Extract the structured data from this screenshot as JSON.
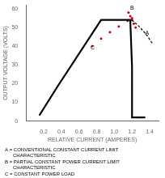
{
  "chart_data": {
    "type": "line",
    "xlabel": "RELATIVE CURRENT (AMPERES)",
    "ylabel": "OUTPUT VOLTAGE (VOLTS)",
    "xlim": [
      0.0,
      1.5
    ],
    "ylim": [
      0,
      62
    ],
    "xticks": [
      0.2,
      0.4,
      0.6,
      0.8,
      {
        "value": 1.0,
        "label": "1.0"
      },
      1.2,
      1.4
    ],
    "yticks": [
      0,
      10,
      20,
      30,
      40,
      50,
      60
    ],
    "grid": false,
    "series": [
      {
        "x": [
          0.15,
          0.35,
          0.85,
          1.18,
          1.2,
          1.2,
          1.35
        ],
        "values": [
          3.0,
          18.0,
          54.0,
          54.0,
          29.0,
          2.0,
          2.0
        ],
        "color": "#000000",
        "line_style": "solid"
      },
      {
        "x": [
          1.2,
          1.27,
          1.33,
          1.38,
          1.43
        ],
        "values": [
          54.0,
          51.0,
          48.0,
          45.0,
          41.5
        ],
        "color": "#000000",
        "line_style": "dashed"
      },
      {
        "x": [
          1.16,
          1.18,
          1.2,
          1.22,
          1.24
        ],
        "values": [
          58.0,
          56.0,
          54.0,
          52.0,
          50.0
        ],
        "color": "#cc0000",
        "line_style": "none",
        "marker": "circle"
      },
      {
        "x": [
          0.75,
          0.85,
          0.95,
          1.05,
          1.15,
          1.2
        ],
        "values": [
          40.0,
          44.0,
          47.5,
          50.5,
          53.5,
          55.0
        ],
        "color": "#cc0000",
        "line_style": "none",
        "marker": "circle"
      }
    ],
    "annotations": [
      {
        "text": "A",
        "x": 1.35,
        "y": 46.0
      },
      {
        "text": "B",
        "x": 1.18,
        "y": 59.5
      },
      {
        "text": "C",
        "x": 0.73,
        "y": 38.5
      },
      {
        "text": "A = CONVENTIONAL CONSTANT CURRENT LIMIT\n      CHARACTERISTIC\nB = PARTIAL CONSTANT POWER CURRENT LIMIT\n      CHARACTERISTIC\nC = CONSTANT POWER LOAD"
      }
    ]
  }
}
